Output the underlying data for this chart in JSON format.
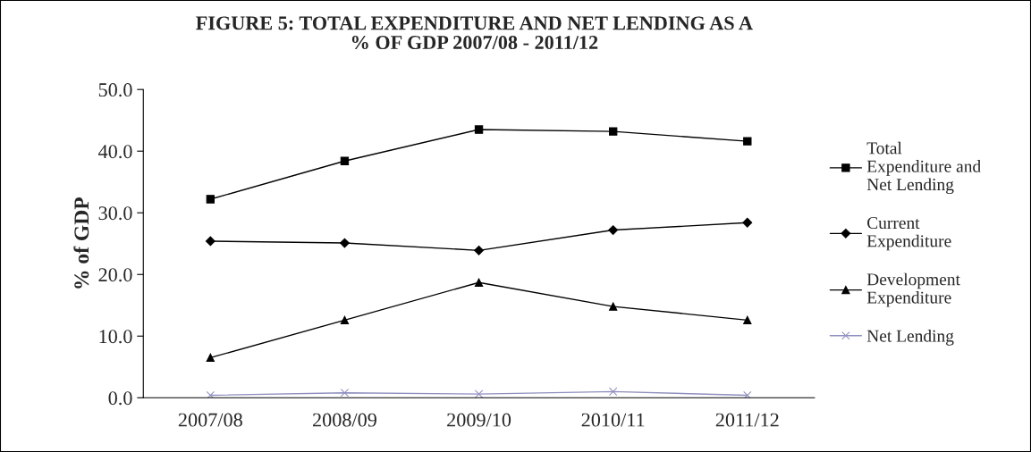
{
  "chart_data": {
    "type": "line",
    "title": "FIGURE 5: TOTAL EXPENDITURE AND NET LENDING AS A\n% OF GDP 2007/08 - 2011/12",
    "ylabel": "% of GDP",
    "categories": [
      "2007/08",
      "2008/09",
      "2009/10",
      "2010/11",
      "2011/12"
    ],
    "series": [
      {
        "name": "Total\nExpenditure and\nNet Lending",
        "color": "#000000",
        "marker": "square",
        "values": [
          32.2,
          38.4,
          43.5,
          43.2,
          41.6
        ]
      },
      {
        "name": "Current\nExpenditure",
        "color": "#000000",
        "marker": "diamond",
        "values": [
          25.4,
          25.1,
          23.9,
          27.2,
          28.4
        ]
      },
      {
        "name": "Development\nExpenditure",
        "color": "#000000",
        "marker": "triangle",
        "values": [
          6.5,
          12.6,
          18.7,
          14.8,
          12.6
        ]
      },
      {
        "name": "Net Lending",
        "color": "#8f8fbf",
        "marker": "cross",
        "values": [
          0.4,
          0.8,
          0.6,
          1.0,
          0.4
        ]
      }
    ],
    "ylim": [
      0,
      50
    ],
    "yticks": [
      {
        "value": 0,
        "label": "0.0"
      },
      {
        "value": 10,
        "label": "10.0"
      },
      {
        "value": 20,
        "label": "20.0"
      },
      {
        "value": 30,
        "label": "30.0"
      },
      {
        "value": 40,
        "label": "40.0"
      },
      {
        "value": 50,
        "label": "50.0"
      }
    ],
    "grid": false,
    "legend": "right"
  }
}
